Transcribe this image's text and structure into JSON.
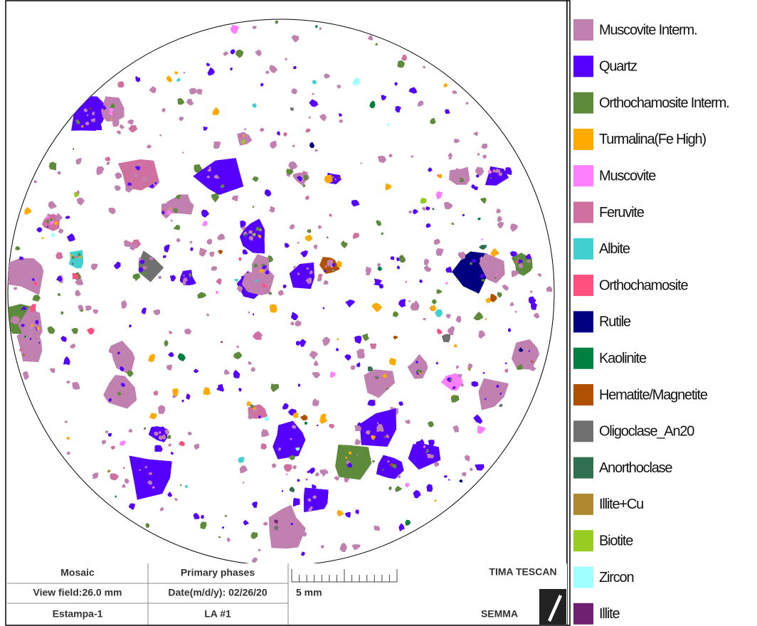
{
  "panel": {
    "rows": [
      [
        "Mosaic",
        "Primary phases"
      ],
      [
        "View field:26.0 mm",
        "Date(m/d/y): 02/26/20"
      ],
      [
        "Estampa-1",
        "LA #1"
      ]
    ],
    "scale_bar": "5 mm",
    "brand": "TIMA TESCAN",
    "lab": "SEMMA"
  },
  "legend": [
    {
      "name": "Muscovite Interm.",
      "color": "#c080b0"
    },
    {
      "name": "Quartz",
      "color": "#5500ff"
    },
    {
      "name": "Orthochamosite Interm.",
      "color": "#5e8a3c"
    },
    {
      "name": "Turmalina(Fe High)",
      "color": "#ffaa00"
    },
    {
      "name": "Muscovite",
      "color": "#ff80ff"
    },
    {
      "name": "Feruvite",
      "color": "#d070a0"
    },
    {
      "name": "Albite",
      "color": "#40d0d0"
    },
    {
      "name": "Orthochamosite",
      "color": "#ff5080"
    },
    {
      "name": "Rutile",
      "color": "#000080"
    },
    {
      "name": "Kaolinite",
      "color": "#008040"
    },
    {
      "name": "Hematite/Magnetite",
      "color": "#b05000"
    },
    {
      "name": "Oligoclase_An20",
      "color": "#707070"
    },
    {
      "name": "Anorthoclase",
      "color": "#307050"
    },
    {
      "name": "Illite+Cu",
      "color": "#b08830"
    },
    {
      "name": "Biotite",
      "color": "#99cc22"
    },
    {
      "name": "Zircon",
      "color": "#a0ffff"
    },
    {
      "name": "Illite",
      "color": "#702070"
    }
  ]
}
